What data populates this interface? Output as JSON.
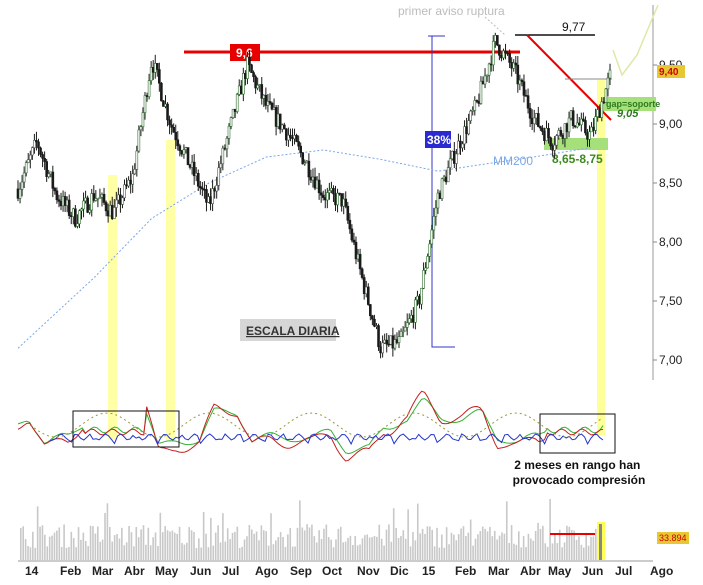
{
  "chart_data": {
    "type": "candlestick",
    "scale_label": "ESCALA DIARIA",
    "x_axis": {
      "labels": [
        "14",
        "Feb",
        "Mar",
        "Abr",
        "May",
        "Jun",
        "Jul",
        "Ago",
        "Sep",
        "Oct",
        "Nov",
        "Dic",
        "15",
        "Feb",
        "Mar",
        "Abr",
        "May",
        "Jun",
        "Jul",
        "Ago"
      ]
    },
    "y_axis": {
      "ticks": [
        "9,50",
        "9,00",
        "8,50",
        "8,00",
        "7,50",
        "7,00"
      ],
      "tick_values": [
        9.5,
        9.0,
        8.5,
        8.0,
        7.5,
        7.0
      ],
      "ylim": [
        6.9,
        9.9
      ],
      "last_price_label": "9,40",
      "last_price_value": 9.4
    },
    "price_path": [
      [
        0,
        8.45
      ],
      [
        1,
        8.85
      ],
      [
        2,
        8.4
      ],
      [
        3,
        8.2
      ],
      [
        4,
        8.4
      ],
      [
        5,
        8.25
      ],
      [
        6,
        8.55
      ],
      [
        7,
        9.55
      ],
      [
        8,
        9.0
      ],
      [
        9,
        8.65
      ],
      [
        10,
        8.3
      ],
      [
        11,
        8.9
      ],
      [
        12,
        9.5
      ],
      [
        13,
        9.15
      ],
      [
        14,
        8.95
      ],
      [
        15,
        8.7
      ],
      [
        16,
        8.4
      ],
      [
        17,
        8.35
      ],
      [
        18,
        7.7
      ],
      [
        19,
        7.1
      ],
      [
        20,
        7.15
      ],
      [
        21,
        7.5
      ],
      [
        22,
        8.4
      ],
      [
        23,
        8.8
      ],
      [
        24,
        9.15
      ],
      [
        25,
        9.7
      ],
      [
        26,
        9.45
      ],
      [
        27,
        9.05
      ],
      [
        28,
        8.85
      ],
      [
        29,
        9.05
      ],
      [
        30,
        8.9
      ],
      [
        31,
        9.4
      ]
    ],
    "moving_average": {
      "name": "MM200",
      "path": [
        [
          0,
          7.1
        ],
        [
          4,
          7.7
        ],
        [
          7,
          8.2
        ],
        [
          10,
          8.5
        ],
        [
          13,
          8.72
        ],
        [
          16,
          8.78
        ],
        [
          19,
          8.7
        ],
        [
          22,
          8.6
        ],
        [
          24,
          8.65
        ],
        [
          27,
          8.72
        ],
        [
          30,
          8.8
        ]
      ]
    },
    "annotations": {
      "resistance_label": "9,6",
      "resistance_value": 9.6,
      "high_label": "9,77",
      "high_value": 9.77,
      "breakout_note": "primer aviso ruptura",
      "retracement_label": "38%",
      "retracement_range": [
        7.1,
        9.7
      ],
      "gap_label": "gap=soporte",
      "gap_value_label": "9,05",
      "gap_value": 9.05,
      "support_zone_label": "8,65-8,75",
      "support_zone": [
        8.65,
        8.75
      ]
    },
    "oscillator": {
      "note": "2 meses en rango han provocado compresión"
    },
    "volume": {
      "last_label": "33.894"
    }
  },
  "colors": {
    "resistance": "#e80000",
    "highlight": "#ffff80",
    "support_zone": "#a6e07a",
    "ma": "#7aa7e6",
    "price_up": "#2e6b2e",
    "price_down": "#1a1a1a",
    "retracement": "#3333cc",
    "gap_label": "#2e7a1e",
    "osc_green": "#33b033",
    "osc_red": "#c42020",
    "osc_blue": "#2233cc",
    "osc_olive": "#9a9a30"
  }
}
